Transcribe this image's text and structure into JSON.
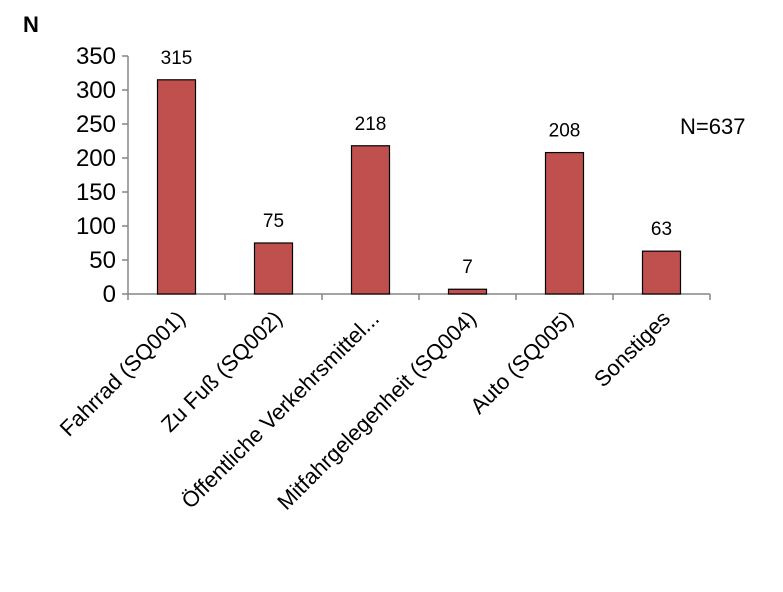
{
  "chart_data": {
    "type": "bar",
    "ylabel": "N",
    "annotation": "N=637",
    "categories": [
      "Fahrrad (SQ001)",
      "Zu Fuß (SQ002)",
      "Öffentliche Verkehrsmittel...",
      "Mitfahrgelegenheit (SQ004)",
      "Auto (SQ005)",
      "Sonstiges"
    ],
    "values": [
      315,
      75,
      218,
      7,
      208,
      63
    ],
    "data_labels": [
      "315",
      "75",
      "218",
      "7",
      "208",
      "63"
    ],
    "ylim": [
      0,
      350
    ],
    "yticks": [
      0,
      50,
      100,
      150,
      200,
      250,
      300,
      350
    ],
    "ytick_labels": [
      "0",
      "50",
      "100",
      "150",
      "200",
      "250",
      "300",
      "350"
    ],
    "bar_color": "#C0504D",
    "bar_edge_color": "#000000",
    "grid": false,
    "legend": "none"
  }
}
